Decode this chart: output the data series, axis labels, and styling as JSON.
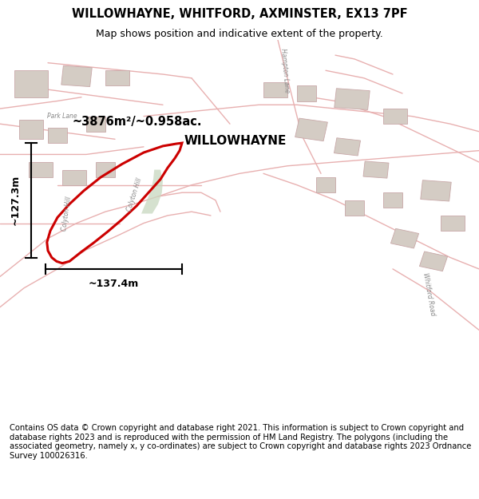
{
  "title": "WILLOWHAYNE, WHITFORD, AXMINSTER, EX13 7PF",
  "subtitle": "Map shows position and indicative extent of the property.",
  "footer": "Contains OS data © Crown copyright and database right 2021. This information is subject to Crown copyright and database rights 2023 and is reproduced with the permission of HM Land Registry. The polygons (including the associated geometry, namely x, y co-ordinates) are subject to Crown copyright and database rights 2023 Ordnance Survey 100026316.",
  "area_label": "~3876m²/~0.958ac.",
  "property_label": "WILLOWHAYNE",
  "width_label": "~137.4m",
  "height_label": "~127.3m",
  "bg_color": "#f2f0ed",
  "title_fontsize": 10.5,
  "subtitle_fontsize": 9,
  "footer_fontsize": 7.2,
  "road_color": "#e8b0b0",
  "building_fill": "#d4ccc4",
  "building_edge": "#c8a8a8",
  "poly_color": "#cc0000",
  "green_fill": "#c8d8c0",
  "dim_color": "#000000",
  "label_color": "#000000",
  "road_label_color": "#888888"
}
